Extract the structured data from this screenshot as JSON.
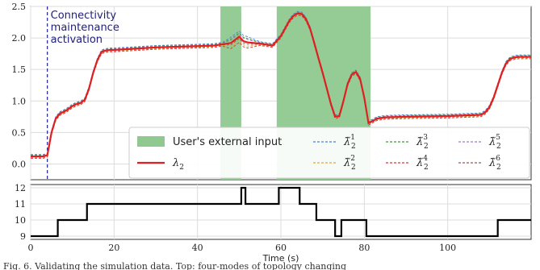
{
  "chart_data": [
    {
      "type": "line",
      "title": "",
      "xlabel": "",
      "ylabel": "",
      "xlim": [
        0,
        120
      ],
      "ylim": [
        -0.25,
        2.5
      ],
      "xticks": [
        0,
        20,
        40,
        60,
        80,
        100
      ],
      "yticks": [
        0.0,
        0.5,
        1.0,
        1.5,
        2.0,
        2.5
      ],
      "ytick_labels": [
        "0.0",
        "0.5",
        "1.0",
        "1.5",
        "2.0",
        "2.5"
      ],
      "grid": true,
      "shaded_intervals": [
        [
          45.5,
          50.5
        ],
        [
          59,
          81.5
        ]
      ],
      "shade_color": "#8fc98f",
      "annotation": {
        "x": 4,
        "lines": [
          "Connectivity",
          "maintenance",
          "activation"
        ]
      },
      "legend": {
        "placement": "lower-right",
        "items": [
          {
            "label": "User's external input",
            "kind": "patch"
          },
          {
            "label": "λ",
            "sub": "2",
            "kind": "line"
          },
          {
            "label": "λ̃",
            "sup": "1",
            "sub": "2",
            "kind": "dashed",
            "color": "#4a7fd4"
          },
          {
            "label": "λ̃",
            "sup": "2",
            "sub": "2",
            "kind": "dashed",
            "color": "#e8a43a"
          },
          {
            "label": "λ̃",
            "sup": "3",
            "sub": "2",
            "kind": "dashed",
            "color": "#3d9a3d"
          },
          {
            "label": "λ̃",
            "sup": "4",
            "sub": "2",
            "kind": "dashed",
            "color": "#d23b3b"
          },
          {
            "label": "λ̃",
            "sup": "5",
            "sub": "2",
            "kind": "dashed",
            "color": "#a07ad0"
          },
          {
            "label": "λ̃",
            "sup": "6",
            "sub": "2",
            "kind": "dashed",
            "color": "#8e5a5a"
          }
        ]
      },
      "series": [
        {
          "name": "λ2",
          "color": "#e02020",
          "x": [
            0,
            3,
            4,
            5,
            6,
            7,
            8,
            9,
            10,
            11,
            12,
            13,
            14,
            15,
            16,
            17,
            18,
            19,
            20,
            25,
            30,
            35,
            40,
            44,
            46,
            48,
            49,
            50,
            51,
            52,
            55,
            58,
            60,
            61,
            62,
            63,
            64,
            65,
            66,
            67,
            68,
            69,
            70,
            71,
            72,
            73,
            74,
            75,
            76,
            77,
            78,
            79,
            80,
            81,
            82,
            83,
            85,
            90,
            100,
            108,
            109,
            110,
            111,
            112,
            113,
            114,
            115,
            116,
            117,
            118,
            120
          ],
          "y": [
            0.12,
            0.12,
            0.14,
            0.5,
            0.72,
            0.8,
            0.83,
            0.87,
            0.92,
            0.95,
            0.97,
            1.02,
            1.2,
            1.45,
            1.65,
            1.78,
            1.8,
            1.81,
            1.81,
            1.83,
            1.85,
            1.86,
            1.87,
            1.88,
            1.9,
            1.92,
            1.97,
            2.02,
            1.95,
            1.93,
            1.91,
            1.88,
            2.03,
            2.15,
            2.27,
            2.35,
            2.39,
            2.38,
            2.3,
            2.15,
            1.92,
            1.68,
            1.45,
            1.2,
            0.95,
            0.75,
            0.76,
            1.0,
            1.27,
            1.42,
            1.46,
            1.35,
            1.05,
            0.65,
            0.68,
            0.72,
            0.74,
            0.75,
            0.76,
            0.78,
            0.82,
            0.9,
            1.05,
            1.25,
            1.45,
            1.6,
            1.67,
            1.69,
            1.7,
            1.7,
            1.7
          ]
        }
      ]
    },
    {
      "type": "line",
      "step": true,
      "title": "",
      "xlabel": "Time (s)",
      "ylabel": "",
      "xlim": [
        0,
        120
      ],
      "ylim": [
        8.8,
        12.2
      ],
      "xticks": [
        0,
        20,
        40,
        60,
        80,
        100
      ],
      "yticks": [
        9,
        10,
        11,
        12
      ],
      "grid": true,
      "series": [
        {
          "name": "",
          "color": "#000000",
          "x": [
            0,
            6.5,
            6.5,
            13.5,
            13.5,
            50.5,
            50.5,
            51.5,
            51.5,
            59.5,
            59.5,
            64.5,
            64.5,
            68.5,
            68.5,
            73,
            73,
            74.5,
            74.5,
            80.5,
            80.5,
            112,
            112,
            120
          ],
          "y": [
            9,
            9,
            10,
            10,
            11,
            11,
            12,
            12,
            11,
            11,
            12,
            12,
            11,
            11,
            10,
            10,
            9,
            9,
            10,
            10,
            9,
            9,
            10,
            10
          ]
        }
      ]
    }
  ],
  "caption": "Fig. 6.   Validating the simulation data. Top: four-modes of topology changing"
}
